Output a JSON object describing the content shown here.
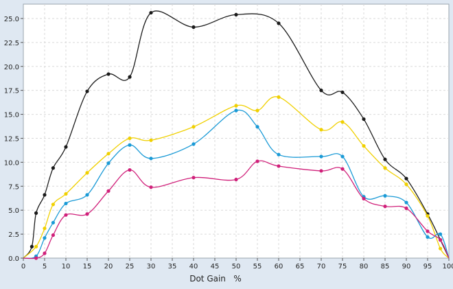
{
  "chart_data": {
    "type": "line",
    "title": "",
    "xlabel": "Dot Gain   %",
    "ylabel": "",
    "xlim": [
      0,
      100
    ],
    "ylim": [
      0,
      26.5
    ],
    "x_ticks": [
      0,
      5,
      10,
      15,
      20,
      25,
      30,
      35,
      40,
      45,
      50,
      55,
      60,
      65,
      70,
      75,
      80,
      85,
      90,
      95,
      100
    ],
    "y_ticks": [
      0,
      2.5,
      5,
      7.5,
      10,
      12.5,
      15,
      17.5,
      20,
      22.5,
      25
    ],
    "grid": true,
    "legend": "none",
    "series": [
      {
        "color": "#1a1a1a",
        "points": [
          [
            0,
            0
          ],
          [
            2,
            1.2
          ],
          [
            3,
            4.7
          ],
          [
            5,
            6.6
          ],
          [
            7,
            9.4
          ],
          [
            10,
            11.6
          ],
          [
            15,
            17.4
          ],
          [
            20,
            19.2
          ],
          [
            25,
            18.9
          ],
          [
            30,
            25.6
          ],
          [
            40,
            24.1
          ],
          [
            50,
            25.4
          ],
          [
            60,
            24.5
          ],
          [
            70,
            17.5
          ],
          [
            75,
            17.3
          ],
          [
            80,
            14.5
          ],
          [
            85,
            10.3
          ],
          [
            90,
            8.3
          ],
          [
            95,
            4.6
          ],
          [
            98,
            1.9
          ],
          [
            100,
            0
          ]
        ]
      },
      {
        "color": "#f0d000",
        "points": [
          [
            0,
            0
          ],
          [
            3,
            1.2
          ],
          [
            5,
            3.1
          ],
          [
            7,
            5.6
          ],
          [
            10,
            6.7
          ],
          [
            15,
            8.9
          ],
          [
            20,
            10.9
          ],
          [
            25,
            12.5
          ],
          [
            30,
            12.3
          ],
          [
            40,
            13.7
          ],
          [
            50,
            15.9
          ],
          [
            55,
            15.4
          ],
          [
            60,
            16.8
          ],
          [
            70,
            13.4
          ],
          [
            75,
            14.2
          ],
          [
            80,
            11.7
          ],
          [
            85,
            9.4
          ],
          [
            90,
            7.7
          ],
          [
            95,
            4.4
          ],
          [
            98,
            1.0
          ],
          [
            100,
            0
          ]
        ]
      },
      {
        "color": "#1a9ad6",
        "points": [
          [
            0,
            0
          ],
          [
            3,
            0.2
          ],
          [
            5,
            2.1
          ],
          [
            7,
            3.7
          ],
          [
            10,
            5.7
          ],
          [
            15,
            6.6
          ],
          [
            20,
            9.9
          ],
          [
            25,
            11.8
          ],
          [
            30,
            10.4
          ],
          [
            40,
            11.9
          ],
          [
            50,
            15.4
          ],
          [
            55,
            13.7
          ],
          [
            60,
            10.8
          ],
          [
            70,
            10.6
          ],
          [
            75,
            10.6
          ],
          [
            80,
            6.4
          ],
          [
            85,
            6.5
          ],
          [
            90,
            5.8
          ],
          [
            95,
            2.2
          ],
          [
            98,
            2.5
          ],
          [
            100,
            0
          ]
        ]
      },
      {
        "color": "#d0207a",
        "points": [
          [
            0,
            0
          ],
          [
            3,
            0
          ],
          [
            5,
            0.5
          ],
          [
            7,
            2.4
          ],
          [
            10,
            4.5
          ],
          [
            15,
            4.6
          ],
          [
            20,
            7.0
          ],
          [
            25,
            9.2
          ],
          [
            30,
            7.4
          ],
          [
            40,
            8.4
          ],
          [
            50,
            8.2
          ],
          [
            55,
            10.1
          ],
          [
            60,
            9.6
          ],
          [
            70,
            9.1
          ],
          [
            75,
            9.3
          ],
          [
            80,
            6.2
          ],
          [
            85,
            5.4
          ],
          [
            90,
            5.2
          ],
          [
            95,
            2.8
          ],
          [
            98,
            1.9
          ],
          [
            100,
            0
          ]
        ]
      }
    ]
  }
}
